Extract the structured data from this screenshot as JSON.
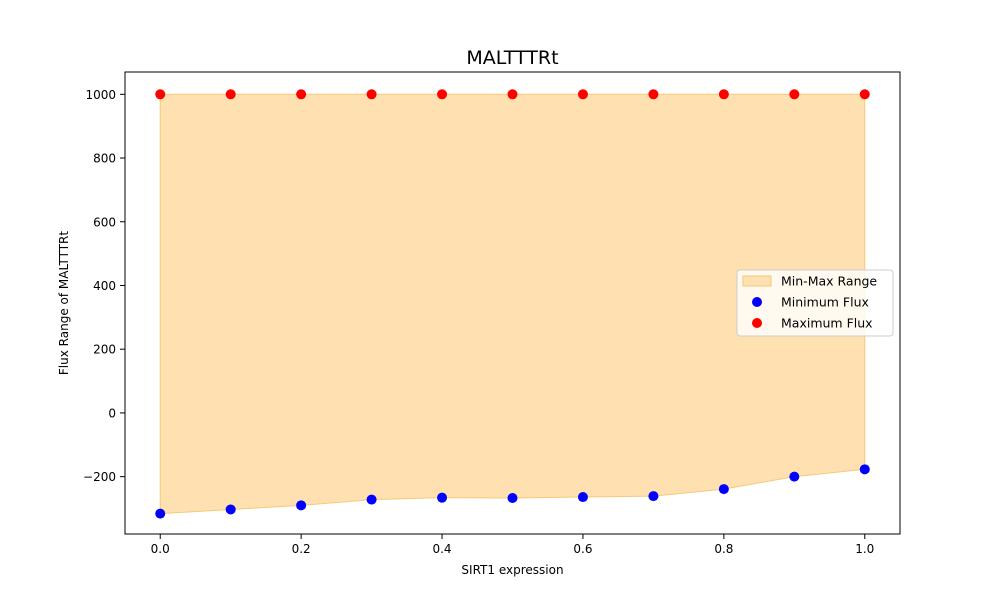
{
  "chart_data": {
    "type": "scatter",
    "title": "MALTTTRt",
    "xlabel": "SIRT1 expression",
    "ylabel": "Flux Range of MALTTTRt",
    "x": [
      0.0,
      0.1,
      0.2,
      0.3,
      0.4,
      0.5,
      0.6,
      0.7,
      0.8,
      0.9,
      1.0
    ],
    "xlim": [
      -0.05,
      1.05
    ],
    "ylim": [
      -380,
      1070
    ],
    "xticks": [
      0.0,
      0.2,
      0.4,
      0.6,
      0.8,
      1.0
    ],
    "xtick_labels": [
      "0.0",
      "0.2",
      "0.4",
      "0.6",
      "0.8",
      "1.0"
    ],
    "yticks": [
      -200,
      0,
      200,
      400,
      600,
      800,
      1000
    ],
    "ytick_labels": [
      "−200",
      "0",
      "200",
      "400",
      "600",
      "800",
      "1000"
    ],
    "fill_between": {
      "name": "Min-Max Range",
      "color": "#ffe0b0",
      "edge_color": "#f5c97a"
    },
    "series": [
      {
        "name": "Minimum Flux",
        "color": "#0000ff",
        "values": [
          -316,
          -303,
          -290,
          -272,
          -266,
          -267,
          -264,
          -261,
          -239,
          -200,
          -177
        ]
      },
      {
        "name": "Maximum Flux",
        "color": "#ff0000",
        "values": [
          1000,
          1000,
          1000,
          1000,
          1000,
          1000,
          1000,
          1000,
          1000,
          1000,
          1000
        ]
      }
    ],
    "legend": {
      "position": "center-right",
      "entries": [
        "Min-Max Range",
        "Minimum Flux",
        "Maximum Flux"
      ]
    },
    "grid": false
  }
}
